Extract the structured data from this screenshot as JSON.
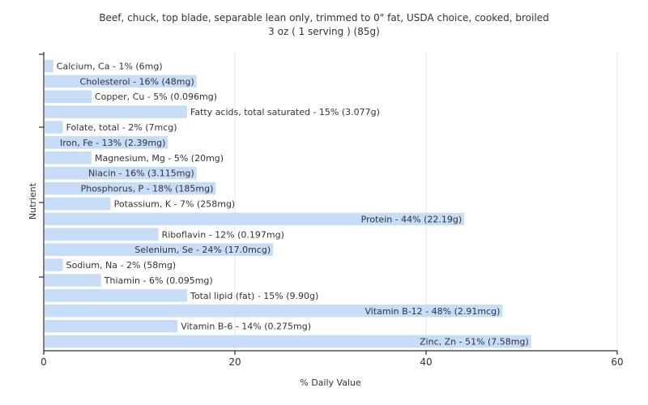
{
  "chart_data": {
    "type": "bar",
    "orientation": "horizontal",
    "title": "Beef, chuck, top blade, separable lean only, trimmed to 0\" fat, USDA choice, cooked, broiled",
    "subtitle": "3 oz ( 1 serving ) (85g)",
    "xlabel": "% Daily Value",
    "ylabel": "Nutrient",
    "xlim": [
      0,
      60
    ],
    "xticks": [
      "0",
      "20",
      "40",
      "60"
    ],
    "grid": true,
    "bar_color": "#c6dcf7",
    "categories": [
      "Calcium, Ca",
      "Cholesterol",
      "Copper, Cu",
      "Fatty acids, total saturated",
      "Folate, total",
      "Iron, Fe",
      "Magnesium, Mg",
      "Niacin",
      "Phosphorus, P",
      "Potassium, K",
      "Protein",
      "Riboflavin",
      "Selenium, Se",
      "Sodium, Na",
      "Thiamin",
      "Total lipid (fat)",
      "Vitamin B-12",
      "Vitamin B-6",
      "Zinc, Zn"
    ],
    "values": [
      1,
      16,
      5,
      15,
      2,
      13,
      5,
      16,
      18,
      7,
      44,
      12,
      24,
      2,
      6,
      15,
      48,
      14,
      51
    ],
    "labels": [
      "Calcium, Ca - 1% (6mg)",
      "Cholesterol - 16% (48mg)",
      "Copper, Cu - 5% (0.096mg)",
      "Fatty acids, total saturated - 15% (3.077g)",
      "Folate, total - 2% (7mcg)",
      "Iron, Fe - 13% (2.39mg)",
      "Magnesium, Mg - 5% (20mg)",
      "Niacin - 16% (3.115mg)",
      "Phosphorus, P - 18% (185mg)",
      "Potassium, K - 7% (258mg)",
      "Protein - 44% (22.19g)",
      "Riboflavin - 12% (0.197mg)",
      "Selenium, Se - 24% (17.0mcg)",
      "Sodium, Na - 2% (58mg)",
      "Thiamin - 6% (0.095mg)",
      "Total lipid (fat) - 15% (9.90g)",
      "Vitamin B-12 - 48% (2.91mcg)",
      "Vitamin B-6 - 14% (0.275mg)",
      "Zinc, Zn - 51% (7.58mg)"
    ]
  }
}
